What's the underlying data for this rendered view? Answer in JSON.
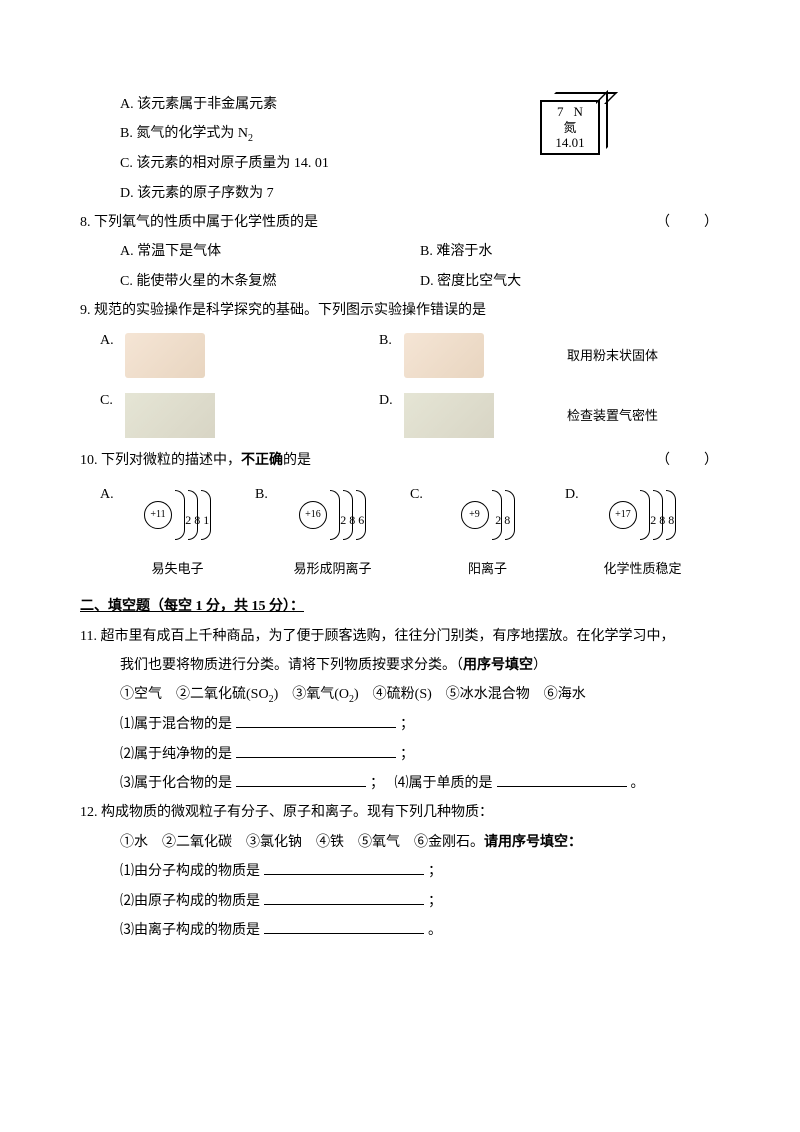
{
  "q7": {
    "optA": "A. 该元素属于非金属元素",
    "optB_pre": "B. 氮气的化学式为 N",
    "optB_sub": "2",
    "optC": "C. 该元素的相对原子质量为 14. 01",
    "optD": "D. 该元素的原子序数为 7",
    "element": {
      "num": "7",
      "sym": "N",
      "name": "氮",
      "mass": "14.01"
    }
  },
  "q8": {
    "stem": "8. 下列氧气的性质中属于化学性质的是",
    "paren": "（　　）",
    "optA": "A. 常温下是气体",
    "optB": "B. 难溶于水",
    "optC": "C. 能使带火星的木条复燃",
    "optD": "D. 密度比空气大"
  },
  "q9": {
    "stem": "9. 规范的实验操作是科学探究的基础。下列图示实验操作错误的是",
    "lblA": "A.",
    "lblB": "B.",
    "lblC": "C.",
    "lblD": "D.",
    "capB": "取用粉末状固体",
    "capD": "检查装置气密性"
  },
  "q10": {
    "stem_pre": "10. 下列对微粒的描述中，",
    "stem_bold": "不正确",
    "stem_post": "的是",
    "paren": "（　　）",
    "items": [
      {
        "lbl": "A.",
        "nucleus": "+11",
        "shells": "2  8  1",
        "caption": "易失电子"
      },
      {
        "lbl": "B.",
        "nucleus": "+16",
        "shells": "2  8  6",
        "caption": "易形成阴离子"
      },
      {
        "lbl": "C.",
        "nucleus": "+9",
        "shells": "2  8",
        "caption": "阳离子"
      },
      {
        "lbl": "D.",
        "nucleus": "+17",
        "shells": "2  8  8",
        "caption": "化学性质稳定"
      }
    ]
  },
  "section2": "二、填空题（每空 1 分，共 15 分）：",
  "q11": {
    "line1": "11. 超市里有成百上千种商品，为了便于顾客选购，往往分门别类，有序地摆放。在化学学习中，",
    "line2": "我们也要将物质进行分类。请将下列物质按要求分类。（",
    "line2_bold": "用序号填空",
    "line2_end": "）",
    "opts_pre": "①空气　②二氧化硫(SO",
    "opts_sub": "2",
    "opts_mid1": ")　③氧气(O",
    "opts_mid2": ")　④硫粉(S)　⑤冰水混合物　⑥海水",
    "sub1": "⑴属于混合物的是",
    "semi": "；",
    "sub2": "⑵属于纯净物的是",
    "sub3": "⑶属于化合物的是",
    "sub4": "⑷属于单质的是",
    "period": "。"
  },
  "q12": {
    "line1": "12. 构成物质的微观粒子有分子、原子和离子。现有下列几种物质：",
    "opts": "①水　②二氧化碳　③氯化钠　④铁　⑤氧气　⑥金刚石。",
    "opts_bold": "请用序号填空：",
    "sub1": "⑴由分子构成的物质是",
    "sub2": "⑵由原子构成的物质是",
    "sub3": "⑶由离子构成的物质是",
    "semi": "；",
    "period": "。"
  }
}
